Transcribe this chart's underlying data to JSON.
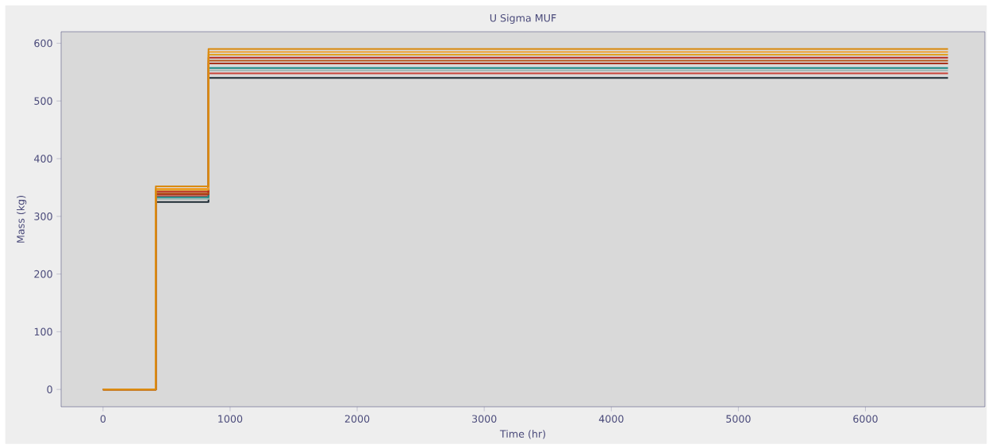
{
  "chart_data": {
    "type": "step",
    "title": "U Sigma MUF",
    "xlabel": "Time (hr)",
    "ylabel": "Mass (kg)",
    "x": [
      0,
      415,
      830,
      6650
    ],
    "xlim": [
      -330,
      6940
    ],
    "ylim": [
      -30,
      620
    ],
    "xticks": [
      0,
      1000,
      2000,
      3000,
      4000,
      5000,
      6000
    ],
    "yticks": [
      0,
      100,
      200,
      300,
      400,
      500,
      600
    ],
    "series": [
      {
        "color": "#1c2a33",
        "values": [
          0,
          325,
          540,
          540
        ]
      },
      {
        "color": "#c8453a",
        "values": [
          0,
          335,
          548,
          548
        ]
      },
      {
        "color": "#9fb8b5",
        "values": [
          0,
          330,
          553,
          553
        ]
      },
      {
        "color": "#1a8a87",
        "values": [
          0,
          333,
          557,
          557
        ]
      },
      {
        "color": "#a8321c",
        "values": [
          0,
          338,
          565,
          565
        ]
      },
      {
        "color": "#b5561a",
        "values": [
          0,
          340,
          570,
          570
        ]
      },
      {
        "color": "#b8281c",
        "values": [
          0,
          343,
          575,
          575
        ]
      },
      {
        "color": "#e0a020",
        "values": [
          0,
          346,
          580,
          580
        ]
      },
      {
        "color": "#f0a030",
        "values": [
          0,
          348,
          585,
          585
        ]
      },
      {
        "color": "#d98a10",
        "values": [
          0,
          352,
          590,
          590
        ]
      }
    ]
  }
}
